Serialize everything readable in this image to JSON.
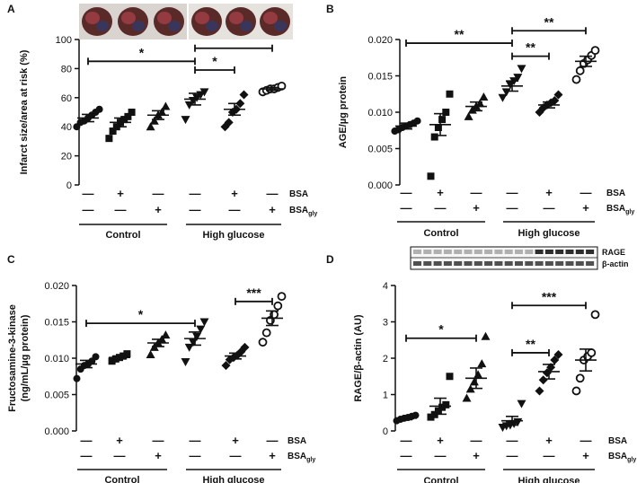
{
  "chart_data": [
    {
      "panel": "A",
      "type": "scatter",
      "ylabel": "Infarct size/area at risk (%)",
      "ylim": [
        0,
        100
      ],
      "yticks": [
        "0",
        "20",
        "40",
        "60",
        "80",
        "100"
      ],
      "groups": [
        {
          "marker": "circle",
          "mean": 46,
          "sem": 2.5,
          "values": [
            40,
            43,
            44,
            46,
            48,
            50,
            52
          ]
        },
        {
          "marker": "square",
          "mean": 43,
          "sem": 3,
          "values": [
            32,
            37,
            40,
            43,
            45,
            47,
            50
          ]
        },
        {
          "marker": "triangle",
          "mean": 48,
          "sem": 3,
          "values": [
            40,
            44,
            48,
            50,
            54
          ]
        },
        {
          "marker": "triangle-down",
          "mean": 59,
          "sem": 4,
          "values": [
            45,
            55,
            58,
            60,
            62,
            64
          ]
        },
        {
          "marker": "diamond",
          "mean": 52,
          "sem": 4,
          "values": [
            40,
            43,
            50,
            52,
            56,
            62
          ]
        },
        {
          "marker": "open-circle",
          "mean": 66,
          "sem": 1,
          "values": [
            64,
            65,
            66,
            66,
            67,
            68
          ]
        }
      ],
      "brackets": [
        {
          "from": 0,
          "to": 3,
          "label": "*",
          "y": 85
        },
        {
          "from": 3,
          "to": 5,
          "label": "*",
          "y": 94
        },
        {
          "from": 3,
          "to": 4,
          "label": "*",
          "y": 79
        }
      ],
      "bsa_row": [
        "—",
        "+",
        "—",
        "—",
        "+",
        "—"
      ],
      "bsagly_row": [
        "—",
        "—",
        "+",
        "—",
        "—",
        "+"
      ]
    },
    {
      "panel": "B",
      "type": "scatter",
      "ylabel": "AGE/µg protein",
      "ylim": [
        0,
        0.02
      ],
      "yticks": [
        "0.000",
        "0.005",
        "0.010",
        "0.015",
        "0.020"
      ],
      "groups": [
        {
          "marker": "circle",
          "mean": 0.0081,
          "sem": 0.0004,
          "values": [
            0.0074,
            0.0076,
            0.0079,
            0.0081,
            0.0083,
            0.0085,
            0.0088
          ]
        },
        {
          "marker": "square",
          "mean": 0.0083,
          "sem": 0.0015,
          "values": [
            0.0012,
            0.0066,
            0.0079,
            0.009,
            0.01,
            0.0125
          ]
        },
        {
          "marker": "triangle",
          "mean": 0.0108,
          "sem": 0.0006,
          "values": [
            0.0094,
            0.0103,
            0.0108,
            0.0112,
            0.0121
          ]
        },
        {
          "marker": "triangle-down",
          "mean": 0.0136,
          "sem": 0.0007,
          "values": [
            0.012,
            0.0128,
            0.0138,
            0.0143,
            0.0148,
            0.016
          ]
        },
        {
          "marker": "diamond",
          "mean": 0.011,
          "sem": 0.0004,
          "values": [
            0.01,
            0.0106,
            0.011,
            0.0113,
            0.0116,
            0.0124
          ]
        },
        {
          "marker": "open-circle",
          "mean": 0.017,
          "sem": 0.0007,
          "values": [
            0.0145,
            0.0157,
            0.0167,
            0.0172,
            0.0178,
            0.0185
          ]
        }
      ],
      "brackets": [
        {
          "from": 0,
          "to": 3,
          "label": "**",
          "y": 0.0195
        },
        {
          "from": 3,
          "to": 5,
          "label": "**",
          "y": 0.0212
        },
        {
          "from": 3,
          "to": 4,
          "label": "**",
          "y": 0.0177
        }
      ],
      "bsa_row": [
        "—",
        "+",
        "—",
        "—",
        "+",
        "—"
      ],
      "bsagly_row": [
        "—",
        "—",
        "+",
        "—",
        "—",
        "+"
      ]
    },
    {
      "panel": "C",
      "type": "scatter",
      "ylabel": "Fructosamine-3-kinase (ng/mL/µg protein)",
      "ylim": [
        0,
        0.02
      ],
      "yticks": [
        "0.000",
        "0.005",
        "0.010",
        "0.015",
        "0.020"
      ],
      "groups": [
        {
          "marker": "circle",
          "mean": 0.0092,
          "sem": 0.0005,
          "values": [
            0.0072,
            0.0085,
            0.009,
            0.0092,
            0.0096,
            0.0102
          ]
        },
        {
          "marker": "square",
          "mean": 0.0101,
          "sem": 0.0002,
          "values": [
            0.0096,
            0.0099,
            0.0101,
            0.0103,
            0.0106
          ]
        },
        {
          "marker": "triangle",
          "mean": 0.0121,
          "sem": 0.0005,
          "values": [
            0.0105,
            0.0115,
            0.0121,
            0.0126,
            0.0132
          ]
        },
        {
          "marker": "triangle-down",
          "mean": 0.0127,
          "sem": 0.0009,
          "values": [
            0.0095,
            0.0115,
            0.0122,
            0.013,
            0.014,
            0.015
          ]
        },
        {
          "marker": "diamond",
          "mean": 0.0103,
          "sem": 0.0004,
          "values": [
            0.009,
            0.0098,
            0.0101,
            0.0104,
            0.0109,
            0.0115
          ]
        },
        {
          "marker": "open-circle",
          "mean": 0.0155,
          "sem": 0.001,
          "values": [
            0.0122,
            0.0135,
            0.0152,
            0.016,
            0.0172,
            0.0185
          ]
        }
      ],
      "brackets": [
        {
          "from": 0,
          "to": 3,
          "label": "*",
          "y": 0.0148
        },
        {
          "from": 4,
          "to": 5,
          "label": "***",
          "y": 0.0178
        }
      ],
      "bsa_row": [
        "—",
        "+",
        "—",
        "—",
        "+",
        "—"
      ],
      "bsagly_row": [
        "—",
        "—",
        "+",
        "—",
        "—",
        "+"
      ]
    },
    {
      "panel": "D",
      "type": "scatter",
      "ylabel": "RAGE/β-actin (AU)",
      "ylim": [
        0,
        4
      ],
      "yticks": [
        "0",
        "1",
        "2",
        "3",
        "4"
      ],
      "groups": [
        {
          "marker": "circle",
          "mean": 0.35,
          "sem": 0.04,
          "values": [
            0.28,
            0.32,
            0.35,
            0.37,
            0.4,
            0.43
          ]
        },
        {
          "marker": "square",
          "mean": 0.68,
          "sem": 0.22,
          "values": [
            0.38,
            0.45,
            0.55,
            0.65,
            0.72,
            1.5
          ]
        },
        {
          "marker": "triangle",
          "mean": 1.45,
          "sem": 0.28,
          "values": [
            0.9,
            1.15,
            1.35,
            1.55,
            1.85,
            2.6
          ]
        },
        {
          "marker": "triangle-down",
          "mean": 0.28,
          "sem": 0.12,
          "values": [
            0.1,
            0.14,
            0.16,
            0.2,
            0.25,
            0.75
          ]
        },
        {
          "marker": "diamond",
          "mean": 1.63,
          "sem": 0.2,
          "values": [
            1.1,
            1.4,
            1.6,
            1.75,
            1.95,
            2.1
          ]
        },
        {
          "marker": "open-circle",
          "mean": 1.95,
          "sem": 0.3,
          "values": [
            1.1,
            1.45,
            1.95,
            2.05,
            2.15,
            3.2
          ]
        }
      ],
      "brackets": [
        {
          "from": 0,
          "to": 2,
          "label": "*",
          "y": 2.55
        },
        {
          "from": 3,
          "to": 5,
          "label": "***",
          "y": 3.45
        },
        {
          "from": 3,
          "to": 4,
          "label": "**",
          "y": 2.15
        }
      ],
      "bsa_row": [
        "—",
        "+",
        "—",
        "—",
        "+",
        "—"
      ],
      "bsagly_row": [
        "—",
        "—",
        "+",
        "—",
        "—",
        "+"
      ],
      "blot_labels": [
        "RAGE",
        "β-actin"
      ]
    }
  ],
  "labels": {
    "bsa": "BSA",
    "bsagly_main": "BSA",
    "bsagly_sub": "gly",
    "control": "Control",
    "high_glucose": "High glucose"
  }
}
